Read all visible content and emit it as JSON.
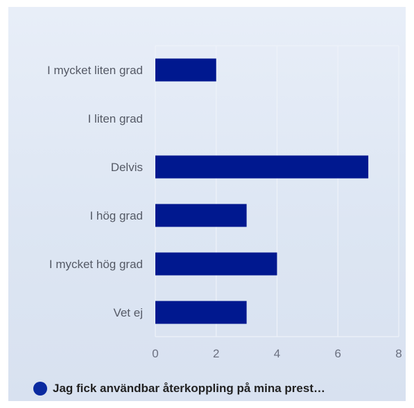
{
  "chart_data": {
    "type": "bar",
    "orientation": "horizontal",
    "categories": [
      "I mycket liten grad",
      "I liten grad",
      "Delvis",
      "I hög grad",
      "I mycket hög grad",
      "Vet ej"
    ],
    "series": [
      {
        "name": "Jag fick användbar återkoppling på mina prest…",
        "values": [
          2,
          0,
          7,
          3,
          4,
          3
        ]
      }
    ],
    "xlim": [
      0,
      8
    ],
    "x_ticks": [
      0,
      2,
      4,
      6,
      8
    ],
    "x_tick_labels": [
      "0",
      "2",
      "4",
      "6",
      "8"
    ],
    "grid": true,
    "legend_position": "bottom-left",
    "bar_color": "#00188f",
    "legend_color": "#0a2aa0",
    "gridline_color": "#eef2f9"
  }
}
